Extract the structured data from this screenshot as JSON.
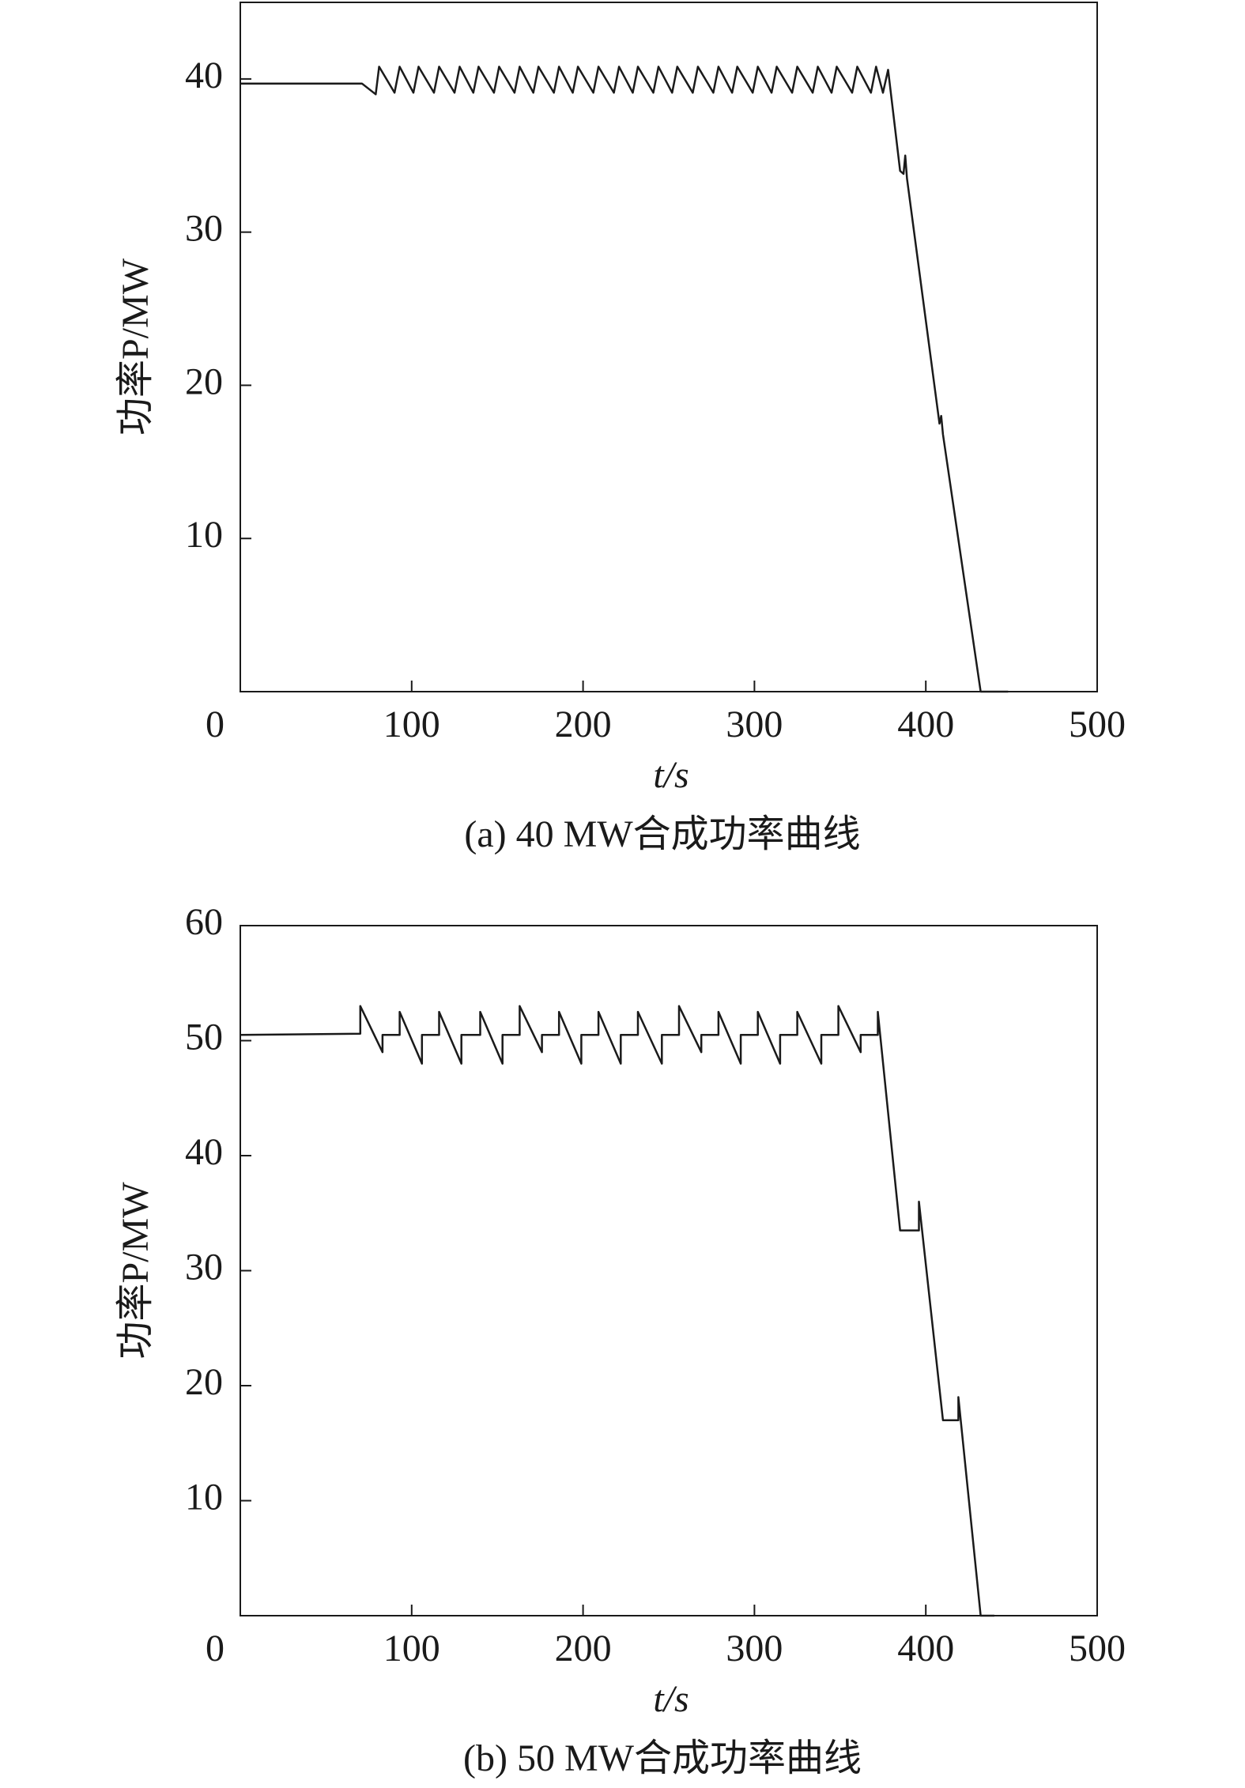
{
  "chart_data": [
    {
      "type": "line",
      "caption": "(a) 40 MW合成功率曲线",
      "x_label": "t/s",
      "y_label": "功率P/MW",
      "xlim": [
        0,
        500
      ],
      "xticks": [
        0,
        100,
        200,
        300,
        400,
        500
      ],
      "ylim": [
        0,
        45
      ],
      "yticks": [
        10,
        20,
        30,
        40
      ],
      "color": "#1a1a1a",
      "x": [
        0,
        71,
        79,
        81,
        90,
        93,
        101,
        104,
        113,
        116,
        125,
        128,
        136,
        139,
        148,
        151,
        160,
        163,
        171,
        174,
        183,
        186,
        194,
        197,
        206,
        209,
        218,
        221,
        229,
        232,
        241,
        244,
        252,
        255,
        264,
        267,
        276,
        279,
        287,
        290,
        299,
        302,
        310,
        313,
        322,
        325,
        334,
        337,
        345,
        348,
        357,
        360,
        368,
        371,
        375,
        378,
        385,
        387,
        388,
        389,
        408,
        409,
        410,
        432,
        448
      ],
      "values": [
        39.7,
        39.7,
        39,
        40.8,
        39.1,
        40.8,
        39.1,
        40.8,
        39.1,
        40.8,
        39.1,
        40.8,
        39.1,
        40.8,
        39.1,
        40.8,
        39.1,
        40.8,
        39.1,
        40.8,
        39.1,
        40.8,
        39.1,
        40.8,
        39.1,
        40.8,
        39.1,
        40.8,
        39.1,
        40.8,
        39.1,
        40.8,
        39.1,
        40.8,
        39.1,
        40.8,
        39.1,
        40.8,
        39.1,
        40.8,
        39.1,
        40.8,
        39.1,
        40.8,
        39.1,
        40.8,
        39.1,
        40.8,
        39.1,
        40.8,
        39.1,
        40.8,
        39.1,
        40.8,
        39.1,
        40.6,
        34,
        33.8,
        35,
        33.5,
        17.5,
        18,
        16.8,
        0,
        0
      ]
    },
    {
      "type": "line",
      "caption": "(b) 50 MW合成功率曲线",
      "x_label": "t/s",
      "y_label": "功率P/MW",
      "xlim": [
        0,
        500
      ],
      "xticks": [
        0,
        100,
        200,
        300,
        400,
        500
      ],
      "ylim": [
        0,
        60
      ],
      "yticks": [
        10,
        20,
        30,
        40,
        50,
        60
      ],
      "color": "#1a1a1a",
      "x": [
        0,
        70,
        70,
        83,
        83,
        93,
        93,
        106,
        106,
        116,
        116,
        129,
        129,
        140,
        140,
        153,
        153,
        163,
        163,
        176,
        176,
        186,
        186,
        199,
        199,
        209,
        209,
        222,
        222,
        232,
        232,
        246,
        246,
        256,
        256,
        269,
        269,
        279,
        279,
        292,
        292,
        302,
        302,
        315,
        315,
        325,
        325,
        339,
        339,
        349,
        349,
        362,
        362,
        372,
        372,
        385,
        396,
        396,
        410,
        419,
        419,
        432,
        440
      ],
      "values": [
        50.5,
        50.6,
        53,
        49,
        50.5,
        50.5,
        52.5,
        48,
        50.5,
        50.5,
        52.5,
        48,
        50.5,
        50.5,
        52.5,
        48,
        50.5,
        50.5,
        53,
        49,
        50.5,
        50.5,
        52.5,
        48,
        50.5,
        50.5,
        52.5,
        48,
        50.5,
        50.5,
        52.5,
        48,
        50.5,
        50.5,
        53,
        49,
        50.5,
        50.5,
        52.5,
        48,
        50.5,
        50.5,
        52.5,
        48,
        50.5,
        50.5,
        52.5,
        48,
        50.5,
        50.5,
        53,
        49,
        50.5,
        50.5,
        52.5,
        33.5,
        33.5,
        36,
        17,
        17,
        19,
        0,
        0
      ]
    }
  ]
}
